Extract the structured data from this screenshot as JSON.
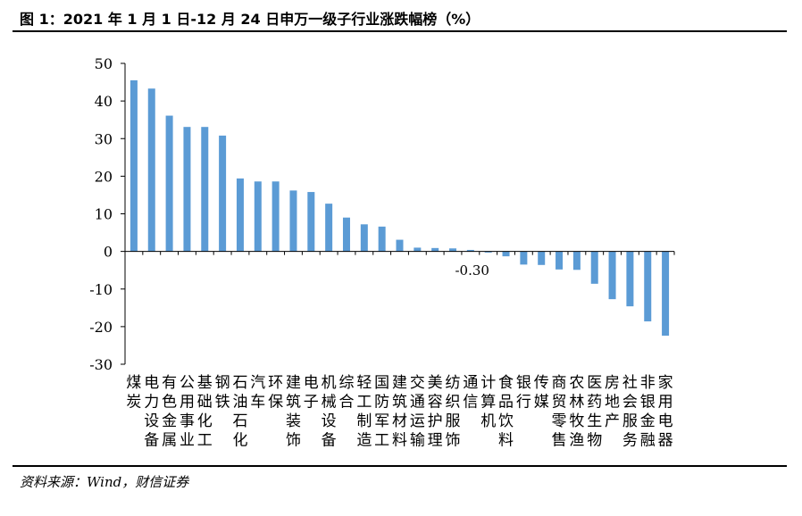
{
  "figure": {
    "title": "图 1：2021 年 1 月 1 日-12 月 24 日申万一级子行业涨跌幅榜（%）",
    "source": "资料来源：Wind，财信证券"
  },
  "colors": {
    "bar": "#5B9BD5",
    "axis": "#000000"
  },
  "chart_data": {
    "type": "bar",
    "title": "",
    "xlabel": "",
    "ylabel": "",
    "ylim": [
      -30,
      50
    ],
    "yticks": [
      50,
      40,
      30,
      20,
      10,
      0,
      -10,
      -20,
      -30
    ],
    "grid": false,
    "categories": [
      "煤炭",
      "电力设备",
      "有色金属",
      "公用事业",
      "基础化工",
      "钢铁",
      "石油石化",
      "汽车",
      "环保",
      "建筑装饰",
      "电子",
      "机械设备",
      "综合",
      "轻工制造",
      "国防军工",
      "建筑材料",
      "交通运输",
      "美容护理",
      "纺织服饰",
      "通信",
      "计算机",
      "食品饮料",
      "银行",
      "传媒",
      "商贸零售",
      "农林牧渔",
      "医药生物",
      "房地产",
      "社会服务",
      "非银金融",
      "家用电器"
    ],
    "label_lines": [
      [
        "煤",
        "炭",
        "",
        ""
      ],
      [
        "电",
        "力",
        "设",
        "备"
      ],
      [
        "有",
        "色",
        "金",
        "属"
      ],
      [
        "公",
        "用",
        "事",
        "业"
      ],
      [
        "基",
        "础",
        "化",
        "工"
      ],
      [
        "钢",
        "铁",
        "",
        ""
      ],
      [
        "石",
        "油",
        "石",
        "化"
      ],
      [
        "汽",
        "车",
        "",
        ""
      ],
      [
        "环",
        "保",
        "",
        ""
      ],
      [
        "建",
        "筑",
        "装",
        "饰"
      ],
      [
        "电",
        "子",
        "",
        ""
      ],
      [
        "机",
        "械",
        "设",
        "备"
      ],
      [
        "综",
        "合",
        "",
        ""
      ],
      [
        "轻",
        "工",
        "制",
        "造"
      ],
      [
        "国",
        "防",
        "军",
        "工"
      ],
      [
        "建",
        "筑",
        "材",
        "料"
      ],
      [
        "交",
        "通",
        "运",
        "输"
      ],
      [
        "美",
        "容",
        "护",
        "理"
      ],
      [
        "纺",
        "织",
        "服",
        "饰"
      ],
      [
        "通",
        "信",
        "",
        ""
      ],
      [
        "计",
        "算",
        "机",
        ""
      ],
      [
        "食",
        "品",
        "饮",
        "料"
      ],
      [
        "银",
        "行",
        "",
        ""
      ],
      [
        "传",
        "媒",
        "",
        ""
      ],
      [
        "商",
        "贸",
        "零",
        "售"
      ],
      [
        "农",
        "林",
        "牧",
        "渔"
      ],
      [
        "医",
        "药",
        "生",
        "物"
      ],
      [
        "房",
        "地",
        "产",
        ""
      ],
      [
        "社",
        "会",
        "服",
        "务"
      ],
      [
        "非",
        "银",
        "金",
        "融"
      ],
      [
        "家",
        "用",
        "电",
        "器"
      ]
    ],
    "values": [
      45.5,
      43.3,
      36.1,
      33.1,
      33.1,
      30.8,
      19.4,
      18.6,
      18.6,
      16.2,
      15.8,
      12.7,
      9.0,
      7.2,
      6.6,
      3.1,
      1.0,
      0.9,
      0.8,
      0.4,
      -0.3,
      -1.3,
      -3.5,
      -3.6,
      -4.8,
      -4.9,
      -8.6,
      -12.7,
      -14.6,
      -18.6,
      -22.4
    ],
    "annotations": [
      {
        "index": 20,
        "text": "-0.30"
      }
    ]
  }
}
